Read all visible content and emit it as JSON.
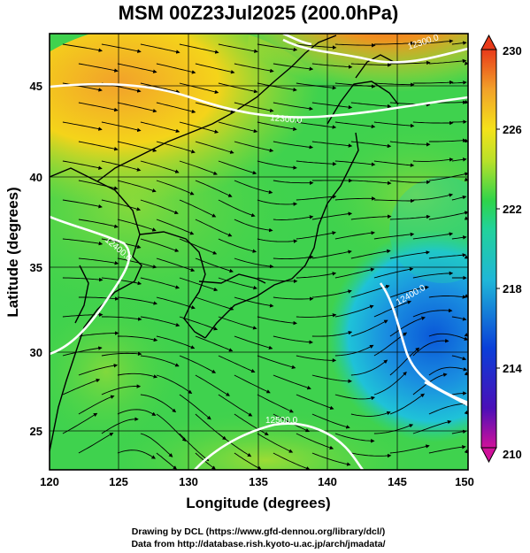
{
  "title": "MSM 00Z23Jul2025 (200.0hPa)",
  "map": {
    "xlabel": "Longitude (degrees)",
    "ylabel": "Latitude  (degrees)",
    "lon_range": [
      120,
      150
    ],
    "lat_range": [
      22.5,
      48
    ],
    "lon_ticks": [
      "120",
      "125",
      "130",
      "135",
      "140",
      "145",
      "150"
    ],
    "lat_ticks": [
      "25",
      "30",
      "35",
      "40",
      "45"
    ],
    "grid": true,
    "field": "temperature-like scalar shaded with streamlines and white contours",
    "contour_labels": [
      "12300.0",
      "12300.0",
      "12400.0",
      "12400.0",
      "12500.0"
    ]
  },
  "colorbar": {
    "ticks": [
      "230",
      "226",
      "222",
      "218",
      "214",
      "210"
    ],
    "min": 210,
    "max": 230,
    "colors": [
      "#d0119a",
      "#4a0fb8",
      "#0a3fd8",
      "#1fb6d8",
      "#22d29a",
      "#2ed44a",
      "#b8e02a",
      "#f4e21a",
      "#f2a12a",
      "#e83a1a"
    ]
  },
  "credits": {
    "line1": "Drawing by DCL (https://www.gfd-dennou.org/library/dcl/)",
    "line2": "Data from http://database.rish.kyoto-u.ac.jp/arch/jmadata/"
  }
}
